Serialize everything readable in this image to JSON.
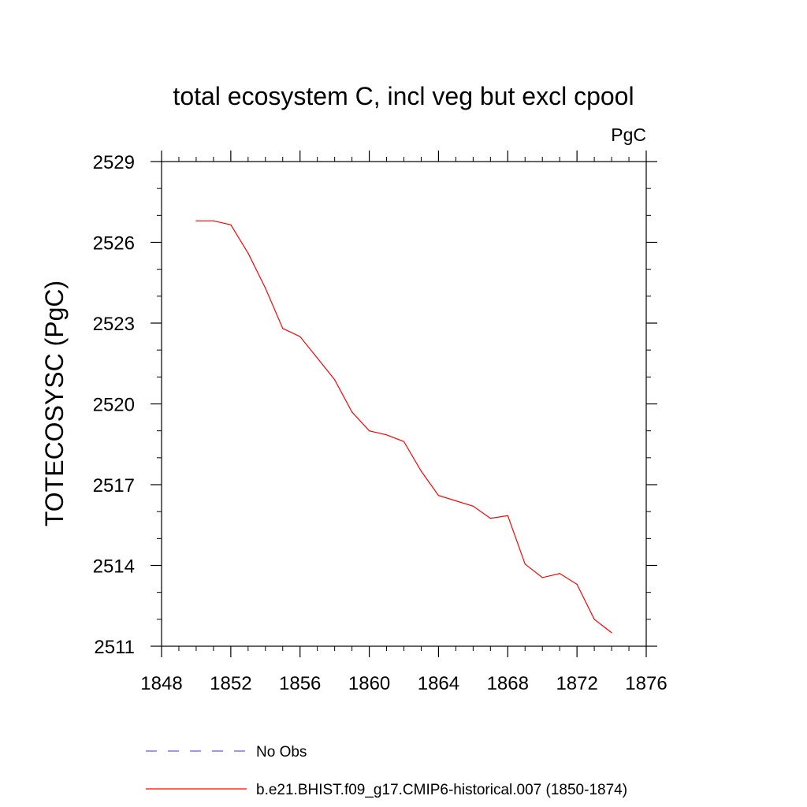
{
  "chart_data": {
    "type": "line",
    "title": "total ecosystem C, incl veg but excl cpool",
    "units_label": "PgC",
    "xlabel": "",
    "ylabel": "TOTECOSYSC  (PgC)",
    "xlim": [
      1848,
      1876
    ],
    "ylim": [
      2511,
      2529
    ],
    "x_major_ticks": [
      1848,
      1852,
      1856,
      1860,
      1864,
      1868,
      1872,
      1876
    ],
    "x_minor_step": 1,
    "y_major_ticks": [
      2511,
      2514,
      2517,
      2520,
      2523,
      2526,
      2529
    ],
    "y_minor_step": 1,
    "grid": false,
    "legend_position": "bottom",
    "series": [
      {
        "name": "b.e21.BHIST.f09_g17.CMIP6-historical.007 (1850-1874)",
        "color": "#ff0000",
        "dash": "solid",
        "x": [
          1850,
          1851,
          1852,
          1853,
          1854,
          1855,
          1856,
          1857,
          1858,
          1859,
          1860,
          1861,
          1862,
          1863,
          1864,
          1865,
          1866,
          1867,
          1868,
          1869,
          1870,
          1871,
          1872,
          1873,
          1874
        ],
        "y": [
          2526.8,
          2526.8,
          2526.65,
          2525.6,
          2524.3,
          2522.8,
          2522.5,
          2521.7,
          2520.9,
          2519.7,
          2519.0,
          2518.85,
          2518.6,
          2517.5,
          2516.6,
          2516.4,
          2516.2,
          2515.75,
          2515.85,
          2514.05,
          2513.55,
          2513.7,
          2513.3,
          2512.0,
          2511.5
        ]
      }
    ],
    "legend": [
      {
        "label": "No Obs",
        "color": "#6a5acd",
        "dash": "dashed"
      },
      {
        "label": "b.e21.BHIST.f09_g17.CMIP6-historical.007 (1850-1874)",
        "color": "#ff0000",
        "dash": "solid"
      }
    ]
  }
}
